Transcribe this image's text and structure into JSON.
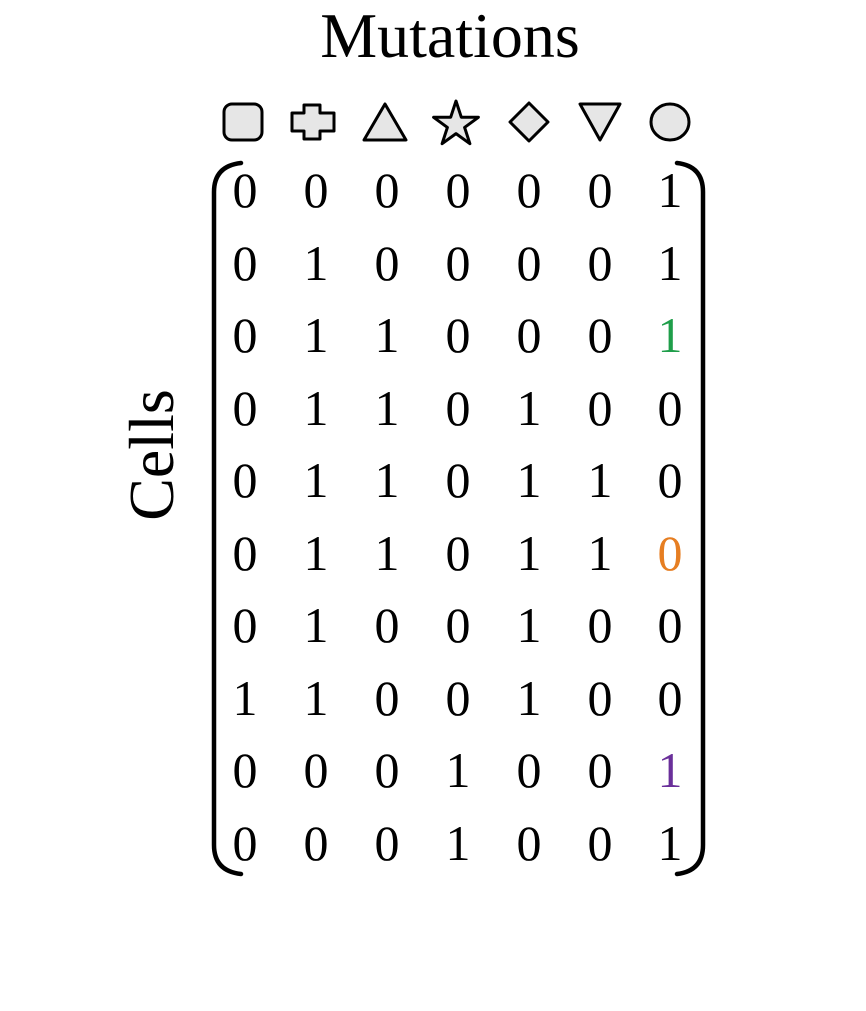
{
  "title": "Mutations",
  "ylabel": "Cells",
  "mutation_icons": [
    "rounded-square-icon",
    "plus-cross-icon",
    "triangle-up-icon",
    "star-icon",
    "diamond-icon",
    "triangle-down-icon",
    "circle-icon"
  ],
  "matrix": [
    [
      "0",
      "0",
      "0",
      "0",
      "0",
      "0",
      "1"
    ],
    [
      "0",
      "1",
      "0",
      "0",
      "0",
      "0",
      "1"
    ],
    [
      "0",
      "1",
      "1",
      "0",
      "0",
      "0",
      "1"
    ],
    [
      "0",
      "1",
      "1",
      "0",
      "1",
      "0",
      "0"
    ],
    [
      "0",
      "1",
      "1",
      "0",
      "1",
      "1",
      "0"
    ],
    [
      "0",
      "1",
      "1",
      "0",
      "1",
      "1",
      "0"
    ],
    [
      "0",
      "1",
      "0",
      "0",
      "1",
      "0",
      "0"
    ],
    [
      "1",
      "1",
      "0",
      "0",
      "1",
      "0",
      "0"
    ],
    [
      "0",
      "0",
      "0",
      "1",
      "0",
      "0",
      "1"
    ],
    [
      "0",
      "0",
      "0",
      "1",
      "0",
      "0",
      "1"
    ]
  ],
  "highlights": [
    {
      "row": 2,
      "col": 6,
      "color": "#1f9e4a"
    },
    {
      "row": 5,
      "col": 6,
      "color": "#e67e22"
    },
    {
      "row": 8,
      "col": 6,
      "color": "#6a2f9a"
    }
  ]
}
